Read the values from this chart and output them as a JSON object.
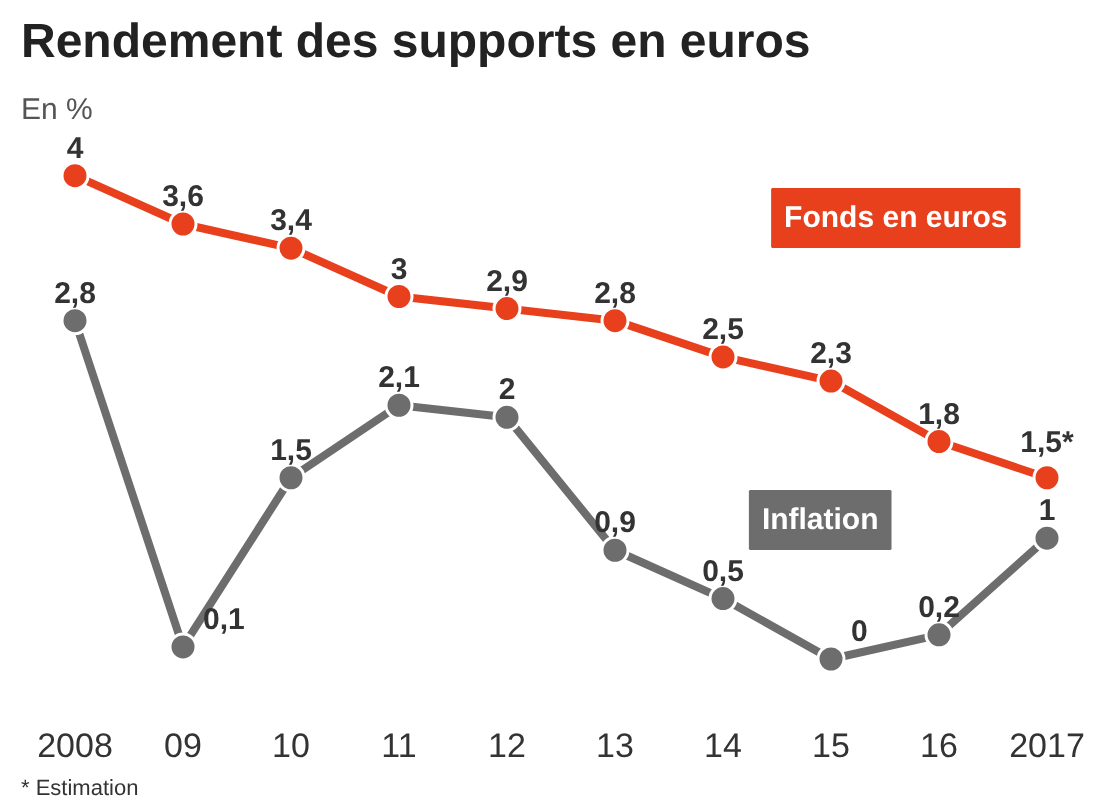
{
  "chart_data": {
    "type": "line",
    "title": "Rendement des supports en euros",
    "subtitle": "En %",
    "categories": [
      "2008",
      "09",
      "10",
      "11",
      "12",
      "13",
      "14",
      "15",
      "16",
      "2017"
    ],
    "series": [
      {
        "name": "Fonds en euros",
        "color": "#e8401c",
        "values": [
          4,
          3.6,
          3.4,
          3,
          2.9,
          2.8,
          2.5,
          2.3,
          1.8,
          1.5
        ],
        "value_labels": [
          "4",
          "3,6",
          "3,4",
          "3",
          "2,9",
          "2,8",
          "2,5",
          "2,3",
          "1,8",
          "1,5*"
        ]
      },
      {
        "name": "Inflation",
        "color": "#6d6d6d",
        "values": [
          2.8,
          0.1,
          1.5,
          2.1,
          2,
          0.9,
          0.5,
          0,
          0.2,
          1
        ],
        "value_labels": [
          "2,8",
          "0,1",
          "1,5",
          "2,1",
          "2",
          "0,9",
          "0,5",
          "0",
          "0,2",
          "1"
        ]
      }
    ],
    "annotations": [
      "* Estimation"
    ],
    "marker": "circle",
    "line_style": "solid",
    "grid": false
  }
}
